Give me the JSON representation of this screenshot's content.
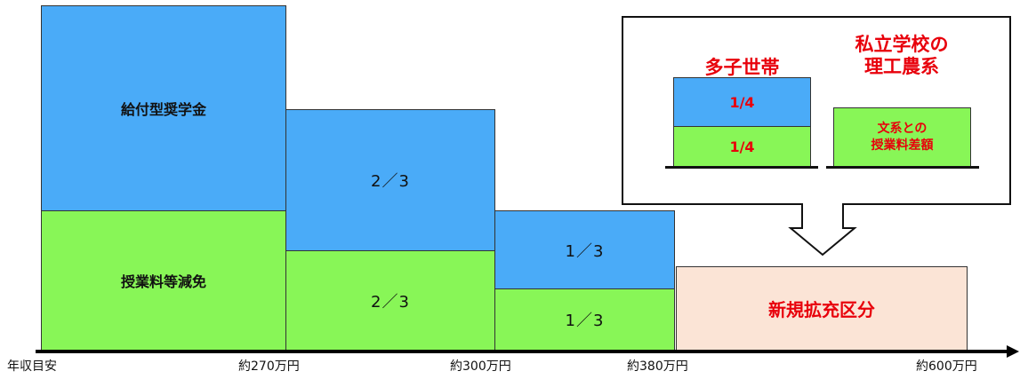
{
  "blocks": {
    "tier1_top": "給付型奨学金",
    "tier1_bottom": "授業料等減免",
    "tier2_top": "2／3",
    "tier2_bottom": "2／3",
    "tier3_top": "1／3",
    "tier3_bottom": "1／3",
    "new_area": "新規拡充区分"
  },
  "axis": {
    "label": "年収目安",
    "ticks": [
      "約270万円",
      "約300万円",
      "約380万円",
      "約600万円"
    ]
  },
  "callout": {
    "left_title": "多子世帯",
    "left_top": "1/4",
    "left_bottom": "1/4",
    "right_title_line1": "私立学校の",
    "right_title_line2": "理工農系",
    "right_box_line1": "文系との",
    "right_box_line2": "授業料差額"
  },
  "colors": {
    "blue": "#4AABF8",
    "green": "#88F657",
    "pink": "#FBE4D6",
    "red": "#E8000B"
  }
}
